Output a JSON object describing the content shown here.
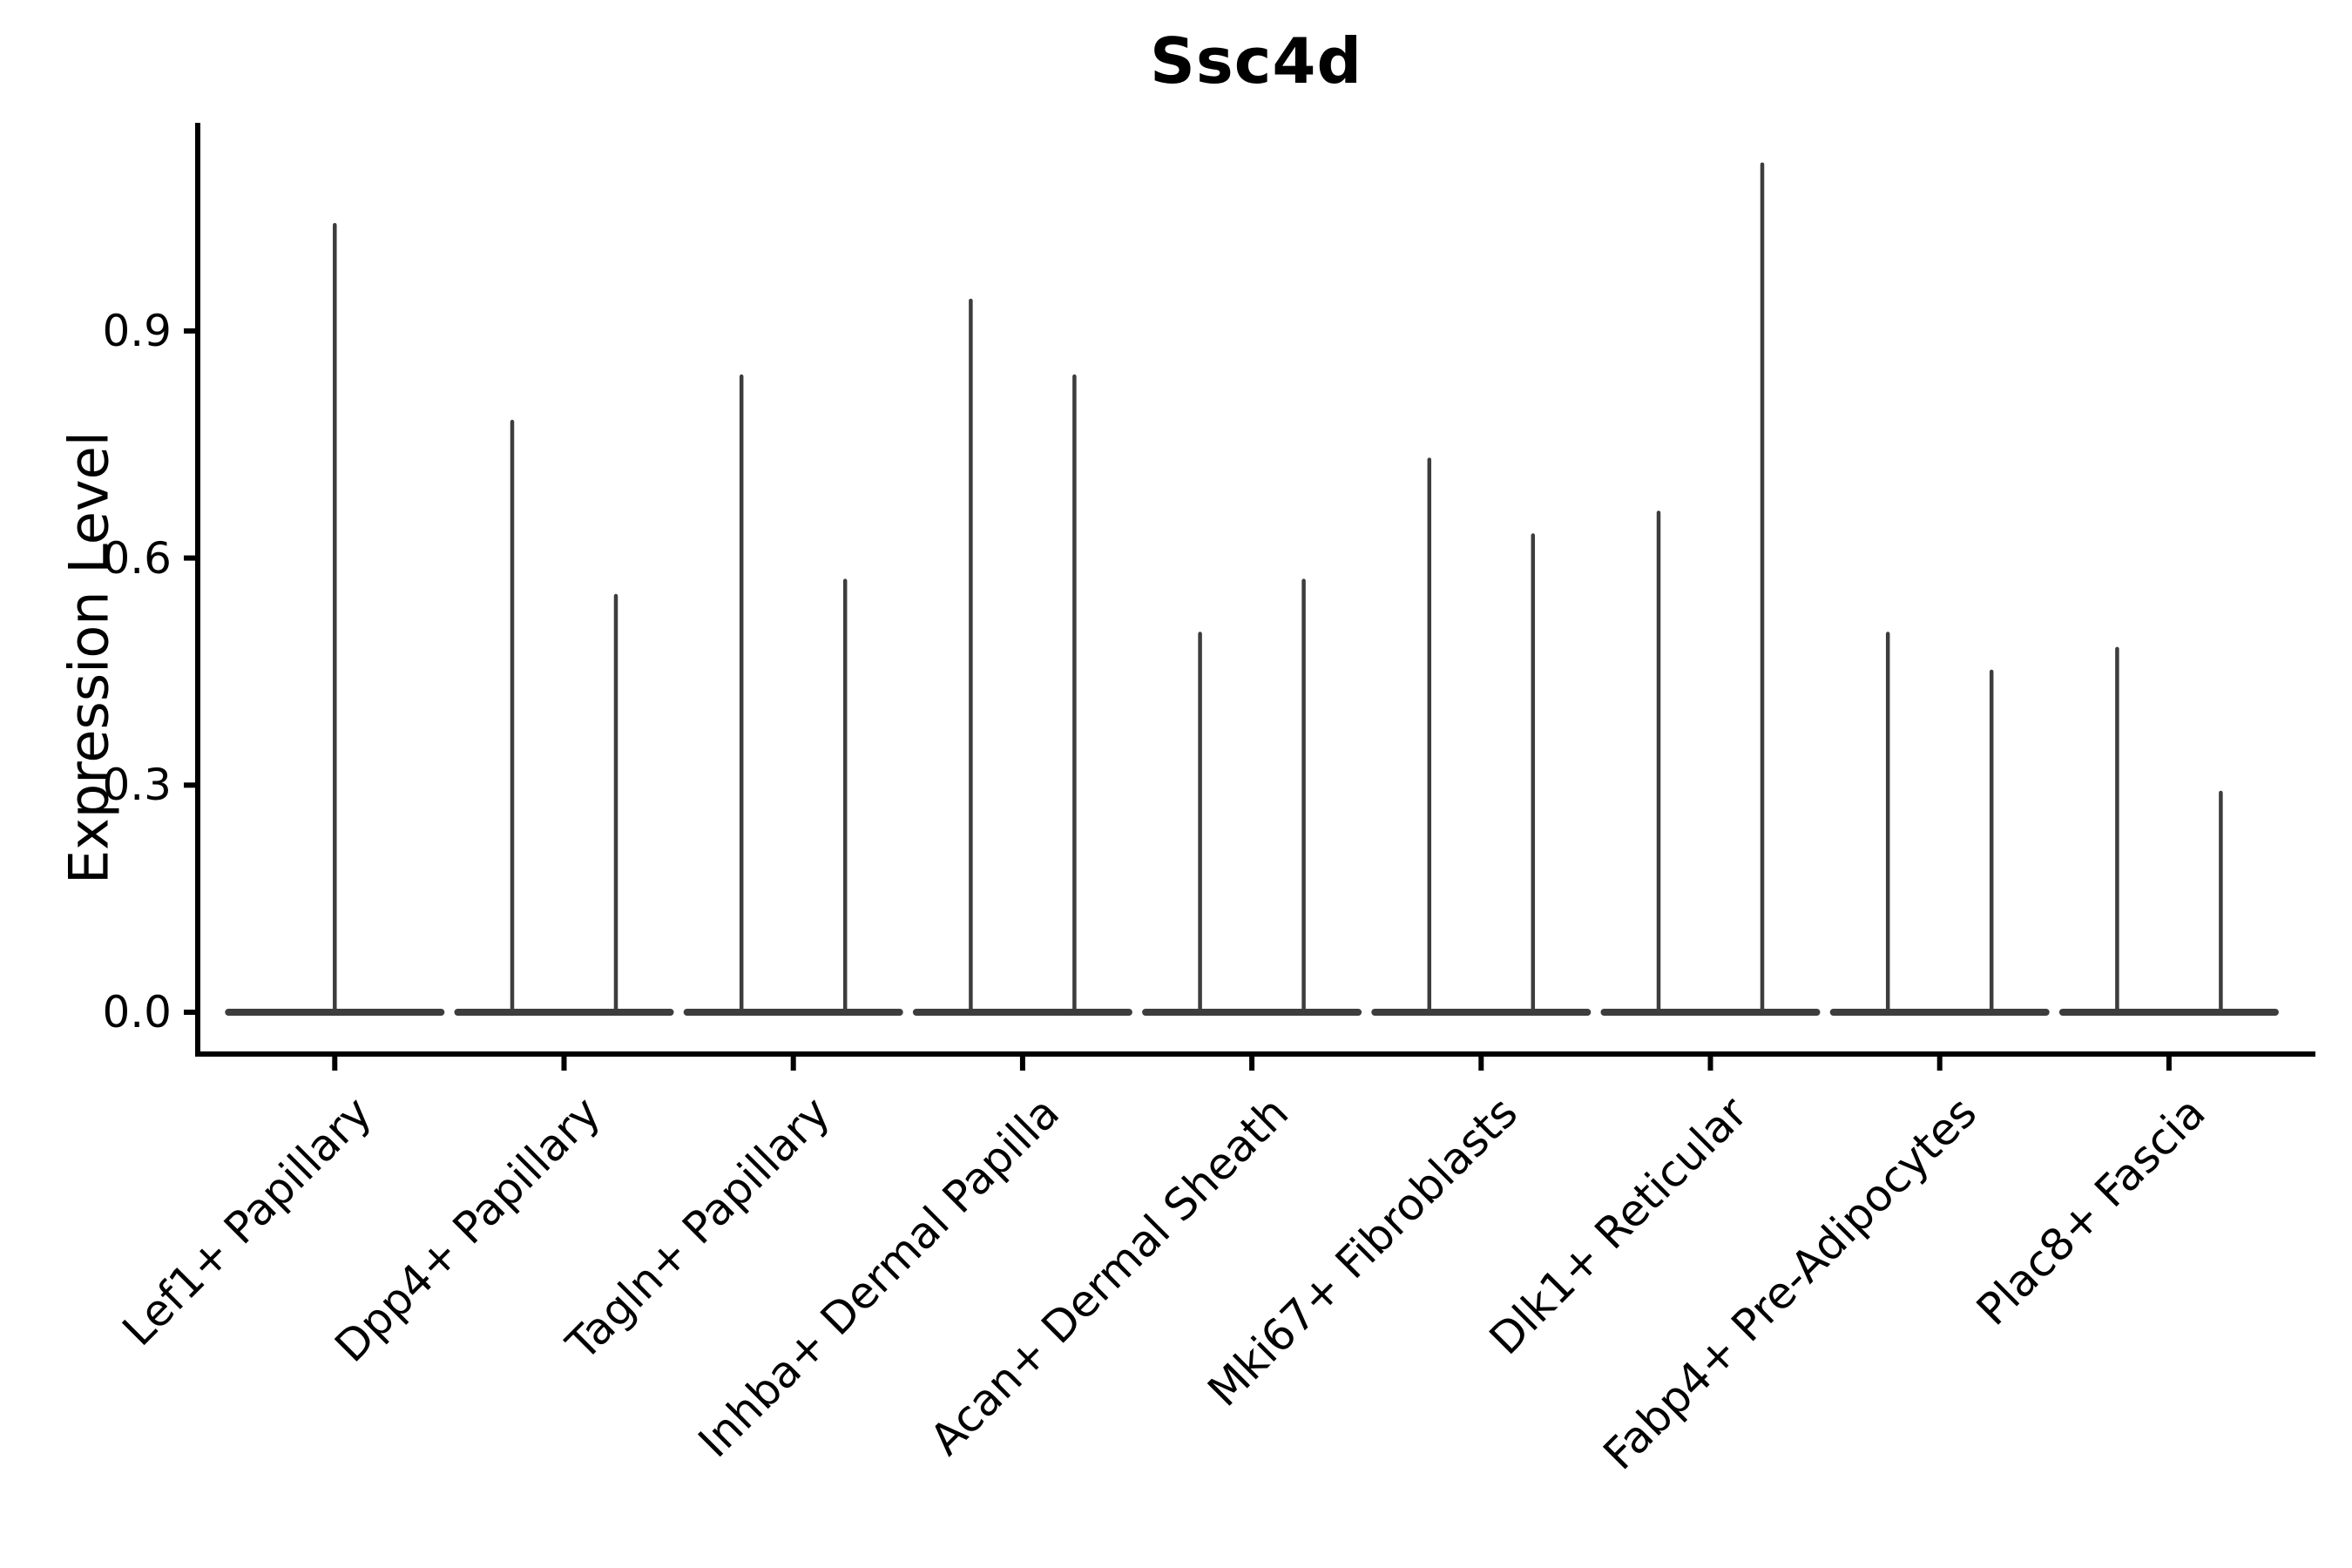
{
  "chart_data": {
    "type": "violin",
    "title": "Ssc4d",
    "xlabel": "",
    "ylabel": "Expression Level",
    "ylim": [
      0,
      1.175
    ],
    "grid": false,
    "legend": "none",
    "ytick_labels": [
      "0.0",
      "0.3",
      "0.6",
      "0.9"
    ],
    "ytick_values": [
      0.0,
      0.3,
      0.6,
      0.9
    ],
    "colors": {
      "axis": "#000000",
      "violin_stroke": "#3d3d3d",
      "background": "#ffffff",
      "text": "#000000"
    },
    "note": "Violin plot; nearly all density at 0 gives a flat base with thin spikes up to each max expression value. Most categories contain two violins side by side.",
    "categories": [
      {
        "name": "Lef1+ Papillary",
        "violin_max_values": [
          1.04
        ]
      },
      {
        "name": "Dpp4+ Papillary",
        "violin_max_values": [
          0.78,
          0.55
        ]
      },
      {
        "name": "Tagln+ Papillary",
        "violin_max_values": [
          0.84,
          0.57
        ]
      },
      {
        "name": "Inhba+ Dermal Papilla",
        "violin_max_values": [
          0.94,
          0.84
        ]
      },
      {
        "name": "Acan+ Dermal Sheath",
        "violin_max_values": [
          0.5,
          0.57
        ]
      },
      {
        "name": "Mki67+ Fibroblasts",
        "violin_max_values": [
          0.73,
          0.63
        ]
      },
      {
        "name": "Dlk1+ Reticular",
        "violin_max_values": [
          0.66,
          1.12
        ]
      },
      {
        "name": "Fabp4+ Pre-Adipocytes",
        "violin_max_values": [
          0.5,
          0.45
        ]
      },
      {
        "name": "Plac8+ Fascia",
        "violin_max_values": [
          0.48,
          0.29
        ]
      }
    ]
  }
}
